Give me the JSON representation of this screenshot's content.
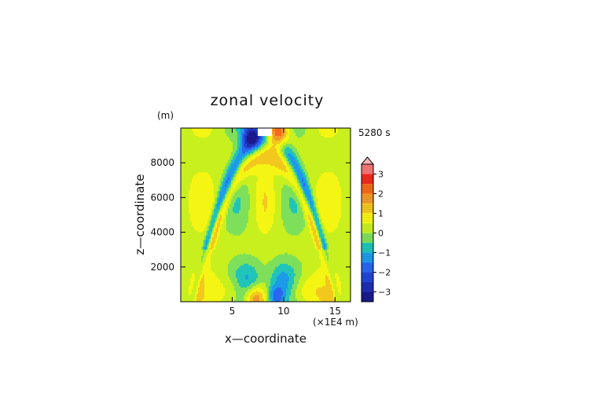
{
  "chart_data": {
    "type": "heatmap",
    "title": "zonal velocity",
    "xlabel": "x—coordinate",
    "ylabel": "z—coordinate",
    "y_unit": "(m)",
    "x_unit": "(×1E4 m)",
    "time_label": "5280 s",
    "xlim": [
      0,
      16.5
    ],
    "ylim": [
      0,
      10000
    ],
    "x_ticks": [
      5,
      10,
      15
    ],
    "y_ticks": [
      2000,
      4000,
      6000,
      8000
    ],
    "x_tick_labels": [
      "5",
      "10",
      "15"
    ],
    "y_tick_labels": [
      "2000",
      "4000",
      "6000",
      "8000"
    ],
    "colorbar": {
      "range": [
        -3.5,
        3.5
      ],
      "tick_values": [
        3,
        2,
        1,
        0,
        -1,
        -2,
        -3
      ],
      "tick_labels": [
        "3",
        "2",
        "1",
        "0",
        "−1",
        "−2",
        "−3"
      ],
      "overflow_triangle": "top",
      "levels": [
        {
          "from": -3.5,
          "to": -3.0,
          "color": "#1a1a8c"
        },
        {
          "from": -3.0,
          "to": -2.5,
          "color": "#1f2fb3"
        },
        {
          "from": -2.5,
          "to": -2.0,
          "color": "#2246d6"
        },
        {
          "from": -2.0,
          "to": -1.5,
          "color": "#2a66f0"
        },
        {
          "from": -1.5,
          "to": -1.0,
          "color": "#1e9be8"
        },
        {
          "from": -1.0,
          "to": -0.5,
          "color": "#20c4b8"
        },
        {
          "from": -0.5,
          "to": 0.0,
          "color": "#7ee05a"
        },
        {
          "from": 0.0,
          "to": 0.5,
          "color": "#c8f01e"
        },
        {
          "from": 0.5,
          "to": 1.0,
          "color": "#f5f514"
        },
        {
          "from": 1.0,
          "to": 1.5,
          "color": "#f2c81e"
        },
        {
          "from": 1.5,
          "to": 2.0,
          "color": "#f29a2a"
        },
        {
          "from": 2.0,
          "to": 2.5,
          "color": "#f56a1e"
        },
        {
          "from": 2.5,
          "to": 3.0,
          "color": "#f02a1e"
        },
        {
          "from": 3.0,
          "to": 3.5,
          "color": "#f57878"
        },
        {
          "from": 3.5,
          "to": 4.0,
          "color": "#fab4b4"
        }
      ]
    },
    "nan_color": "#ffffff"
  }
}
